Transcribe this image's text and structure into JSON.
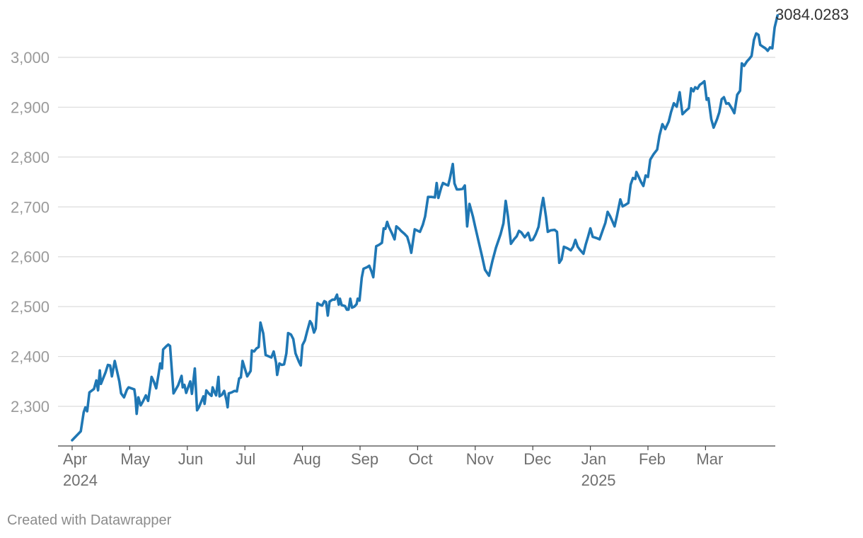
{
  "chart_data": {
    "type": "line",
    "title": "",
    "xlabel": "",
    "ylabel": "",
    "ylim": [
      2220,
      3090
    ],
    "y_ticks": [
      2300,
      2400,
      2500,
      2600,
      2700,
      2800,
      2900,
      3000
    ],
    "y_tick_labels": [
      "2,300",
      "2,400",
      "2,500",
      "2,600",
      "2,700",
      "2,800",
      "2,900",
      "3,000"
    ],
    "x_ticks": [
      {
        "label": "Apr",
        "year": "2024",
        "month_index": 0
      },
      {
        "label": "May",
        "year": "",
        "month_index": 1
      },
      {
        "label": "Jun",
        "year": "",
        "month_index": 2
      },
      {
        "label": "Jul",
        "year": "",
        "month_index": 3
      },
      {
        "label": "Aug",
        "year": "",
        "month_index": 4
      },
      {
        "label": "Sep",
        "year": "",
        "month_index": 5
      },
      {
        "label": "Oct",
        "year": "",
        "month_index": 6
      },
      {
        "label": "Nov",
        "year": "",
        "month_index": 7
      },
      {
        "label": "Dec",
        "year": "",
        "month_index": 8
      },
      {
        "label": "Jan",
        "year": "2025",
        "month_index": 9
      },
      {
        "label": "Feb",
        "year": "",
        "month_index": 10
      },
      {
        "label": "Mar",
        "year": "",
        "month_index": 11
      }
    ],
    "grid": true,
    "series": [
      {
        "name": "value",
        "color": "#1f77b4",
        "points": [
          [
            0.0,
            2232
          ],
          [
            0.15,
            2250
          ],
          [
            0.2,
            2288
          ],
          [
            0.23,
            2298
          ],
          [
            0.26,
            2290
          ],
          [
            0.3,
            2328
          ],
          [
            0.38,
            2335
          ],
          [
            0.42,
            2352
          ],
          [
            0.45,
            2332
          ],
          [
            0.48,
            2372
          ],
          [
            0.5,
            2345
          ],
          [
            0.58,
            2368
          ],
          [
            0.62,
            2383
          ],
          [
            0.66,
            2382
          ],
          [
            0.69,
            2360
          ],
          [
            0.74,
            2391
          ],
          [
            0.82,
            2350
          ],
          [
            0.85,
            2326
          ],
          [
            0.9,
            2318
          ],
          [
            0.95,
            2333
          ],
          [
            0.98,
            2338
          ],
          [
            1.08,
            2334
          ],
          [
            1.1,
            2318
          ],
          [
            1.12,
            2285
          ],
          [
            1.15,
            2318
          ],
          [
            1.19,
            2302
          ],
          [
            1.23,
            2310
          ],
          [
            1.28,
            2322
          ],
          [
            1.32,
            2311
          ],
          [
            1.36,
            2342
          ],
          [
            1.38,
            2359
          ],
          [
            1.42,
            2349
          ],
          [
            1.46,
            2336
          ],
          [
            1.5,
            2364
          ],
          [
            1.53,
            2386
          ],
          [
            1.56,
            2376
          ],
          [
            1.58,
            2414
          ],
          [
            1.63,
            2420
          ],
          [
            1.67,
            2424
          ],
          [
            1.7,
            2421
          ],
          [
            1.76,
            2326
          ],
          [
            1.84,
            2342
          ],
          [
            1.9,
            2361
          ],
          [
            1.92,
            2338
          ],
          [
            1.95,
            2343
          ],
          [
            1.98,
            2327
          ],
          [
            2.05,
            2350
          ],
          [
            2.08,
            2325
          ],
          [
            2.13,
            2376
          ],
          [
            2.17,
            2292
          ],
          [
            2.2,
            2298
          ],
          [
            2.28,
            2320
          ],
          [
            2.3,
            2305
          ],
          [
            2.33,
            2332
          ],
          [
            2.38,
            2325
          ],
          [
            2.42,
            2321
          ],
          [
            2.44,
            2338
          ],
          [
            2.47,
            2329
          ],
          [
            2.5,
            2322
          ],
          [
            2.54,
            2359
          ],
          [
            2.56,
            2320
          ],
          [
            2.6,
            2323
          ],
          [
            2.64,
            2331
          ],
          [
            2.68,
            2312
          ],
          [
            2.7,
            2298
          ],
          [
            2.72,
            2326
          ],
          [
            2.77,
            2328
          ],
          [
            2.82,
            2331
          ],
          [
            2.86,
            2330
          ],
          [
            2.9,
            2356
          ],
          [
            2.93,
            2358
          ],
          [
            2.96,
            2391
          ],
          [
            3.04,
            2360
          ],
          [
            3.1,
            2371
          ],
          [
            3.12,
            2412
          ],
          [
            3.16,
            2410
          ],
          [
            3.2,
            2416
          ],
          [
            3.24,
            2419
          ],
          [
            3.27,
            2468
          ],
          [
            3.32,
            2446
          ],
          [
            3.36,
            2403
          ],
          [
            3.42,
            2400
          ],
          [
            3.46,
            2398
          ],
          [
            3.5,
            2410
          ],
          [
            3.54,
            2388
          ],
          [
            3.56,
            2363
          ],
          [
            3.6,
            2386
          ],
          [
            3.64,
            2383
          ],
          [
            3.68,
            2384
          ],
          [
            3.72,
            2406
          ],
          [
            3.75,
            2447
          ],
          [
            3.8,
            2444
          ],
          [
            3.84,
            2435
          ],
          [
            3.88,
            2406
          ],
          [
            3.94,
            2389
          ],
          [
            3.97,
            2382
          ],
          [
            4.0,
            2423
          ],
          [
            4.04,
            2432
          ],
          [
            4.08,
            2450
          ],
          [
            4.13,
            2471
          ],
          [
            4.16,
            2466
          ],
          [
            4.2,
            2448
          ],
          [
            4.23,
            2456
          ],
          [
            4.26,
            2507
          ],
          [
            4.3,
            2504
          ],
          [
            4.34,
            2502
          ],
          [
            4.38,
            2511
          ],
          [
            4.41,
            2509
          ],
          [
            4.44,
            2482
          ],
          [
            4.47,
            2510
          ],
          [
            4.52,
            2514
          ],
          [
            4.56,
            2514
          ],
          [
            4.6,
            2524
          ],
          [
            4.63,
            2504
          ],
          [
            4.65,
            2516
          ],
          [
            4.68,
            2503
          ],
          [
            4.74,
            2501
          ],
          [
            4.77,
            2494
          ],
          [
            4.8,
            2494
          ],
          [
            4.83,
            2516
          ],
          [
            4.86,
            2498
          ],
          [
            4.9,
            2500
          ],
          [
            4.94,
            2505
          ],
          [
            4.96,
            2516
          ],
          [
            4.99,
            2512
          ],
          [
            5.03,
            2558
          ],
          [
            5.06,
            2576
          ],
          [
            5.12,
            2579
          ],
          [
            5.16,
            2582
          ],
          [
            5.2,
            2570
          ],
          [
            5.23,
            2559
          ],
          [
            5.28,
            2621
          ],
          [
            5.33,
            2624
          ],
          [
            5.38,
            2628
          ],
          [
            5.41,
            2657
          ],
          [
            5.44,
            2656
          ],
          [
            5.47,
            2670
          ],
          [
            5.5,
            2660
          ],
          [
            5.55,
            2648
          ],
          [
            5.6,
            2635
          ],
          [
            5.63,
            2661
          ],
          [
            5.68,
            2656
          ],
          [
            5.72,
            2651
          ],
          [
            5.77,
            2646
          ],
          [
            5.82,
            2640
          ],
          [
            5.86,
            2624
          ],
          [
            5.89,
            2608
          ],
          [
            5.95,
            2655
          ],
          [
            6.04,
            2650
          ],
          [
            6.09,
            2664
          ],
          [
            6.13,
            2681
          ],
          [
            6.18,
            2720
          ],
          [
            6.24,
            2720
          ],
          [
            6.3,
            2719
          ],
          [
            6.33,
            2748
          ],
          [
            6.36,
            2718
          ],
          [
            6.41,
            2739
          ],
          [
            6.44,
            2748
          ],
          [
            6.49,
            2745
          ],
          [
            6.53,
            2743
          ],
          [
            6.56,
            2757
          ],
          [
            6.61,
            2786
          ],
          [
            6.64,
            2747
          ],
          [
            6.68,
            2735
          ],
          [
            6.72,
            2735
          ],
          [
            6.78,
            2736
          ],
          [
            6.82,
            2743
          ],
          [
            6.86,
            2661
          ],
          [
            6.9,
            2706
          ],
          [
            6.96,
            2681
          ],
          [
            7.0,
            2660
          ],
          [
            7.06,
            2630
          ],
          [
            7.12,
            2600
          ],
          [
            7.17,
            2574
          ],
          [
            7.24,
            2562
          ],
          [
            7.3,
            2592
          ],
          [
            7.36,
            2618
          ],
          [
            7.44,
            2645
          ],
          [
            7.49,
            2667
          ],
          [
            7.53,
            2712
          ],
          [
            7.57,
            2680
          ],
          [
            7.62,
            2626
          ],
          [
            7.68,
            2636
          ],
          [
            7.72,
            2641
          ],
          [
            7.76,
            2652
          ],
          [
            7.8,
            2649
          ],
          [
            7.86,
            2639
          ],
          [
            7.92,
            2648
          ],
          [
            7.96,
            2633
          ],
          [
            8.0,
            2634
          ],
          [
            8.05,
            2645
          ],
          [
            8.1,
            2660
          ],
          [
            8.15,
            2699
          ],
          [
            8.18,
            2718
          ],
          [
            8.23,
            2680
          ],
          [
            8.26,
            2650
          ],
          [
            8.31,
            2653
          ],
          [
            8.38,
            2654
          ],
          [
            8.42,
            2650
          ],
          [
            8.46,
            2588
          ],
          [
            8.5,
            2595
          ],
          [
            8.54,
            2620
          ],
          [
            8.6,
            2617
          ],
          [
            8.66,
            2613
          ],
          [
            8.7,
            2620
          ],
          [
            8.74,
            2634
          ],
          [
            8.78,
            2620
          ],
          [
            8.82,
            2614
          ],
          [
            8.88,
            2606
          ],
          [
            8.92,
            2625
          ],
          [
            8.96,
            2640
          ],
          [
            9.0,
            2657
          ],
          [
            9.04,
            2640
          ],
          [
            9.12,
            2637
          ],
          [
            9.16,
            2635
          ],
          [
            9.22,
            2655
          ],
          [
            9.26,
            2668
          ],
          [
            9.3,
            2690
          ],
          [
            9.34,
            2682
          ],
          [
            9.38,
            2672
          ],
          [
            9.42,
            2661
          ],
          [
            9.46,
            2681
          ],
          [
            9.52,
            2715
          ],
          [
            9.56,
            2701
          ],
          [
            9.62,
            2705
          ],
          [
            9.66,
            2708
          ],
          [
            9.7,
            2745
          ],
          [
            9.74,
            2758
          ],
          [
            9.78,
            2756
          ],
          [
            9.8,
            2770
          ],
          [
            9.84,
            2760
          ],
          [
            9.88,
            2750
          ],
          [
            9.92,
            2742
          ],
          [
            9.96,
            2763
          ],
          [
            10.0,
            2760
          ],
          [
            10.04,
            2795
          ],
          [
            10.1,
            2806
          ],
          [
            10.16,
            2815
          ],
          [
            10.2,
            2843
          ],
          [
            10.25,
            2866
          ],
          [
            10.3,
            2856
          ],
          [
            10.36,
            2871
          ],
          [
            10.4,
            2890
          ],
          [
            10.45,
            2908
          ],
          [
            10.5,
            2901
          ],
          [
            10.55,
            2930
          ],
          [
            10.6,
            2886
          ],
          [
            10.66,
            2893
          ],
          [
            10.71,
            2898
          ],
          [
            10.75,
            2938
          ],
          [
            10.79,
            2932
          ],
          [
            10.82,
            2940
          ],
          [
            10.86,
            2937
          ],
          [
            10.9,
            2945
          ],
          [
            10.94,
            2948
          ],
          [
            10.98,
            2952
          ],
          [
            11.02,
            2915
          ],
          [
            11.05,
            2918
          ],
          [
            11.1,
            2876
          ],
          [
            11.14,
            2859
          ],
          [
            11.2,
            2876
          ],
          [
            11.24,
            2890
          ],
          [
            11.28,
            2916
          ],
          [
            11.32,
            2920
          ],
          [
            11.36,
            2907
          ],
          [
            11.4,
            2908
          ],
          [
            11.46,
            2897
          ],
          [
            11.5,
            2888
          ],
          [
            11.55,
            2925
          ],
          [
            11.6,
            2933
          ],
          [
            11.63,
            2988
          ],
          [
            11.67,
            2983
          ],
          [
            11.72,
            2992
          ],
          [
            11.76,
            2997
          ],
          [
            11.8,
            3003
          ],
          [
            11.84,
            3035
          ],
          [
            11.88,
            3048
          ],
          [
            11.92,
            3045
          ],
          [
            11.95,
            3025
          ],
          [
            12.0,
            3021
          ],
          [
            12.04,
            3018
          ],
          [
            12.08,
            3013
          ],
          [
            12.12,
            3020
          ],
          [
            12.16,
            3018
          ],
          [
            12.2,
            3060
          ],
          [
            12.25,
            3084.0283
          ]
        ]
      }
    ],
    "end_label": "3084.0283"
  },
  "credit": "Created with Datawrapper",
  "colors": {
    "line": "#1f77b4",
    "grid": "#dcdcdc",
    "axis": "#444444"
  }
}
